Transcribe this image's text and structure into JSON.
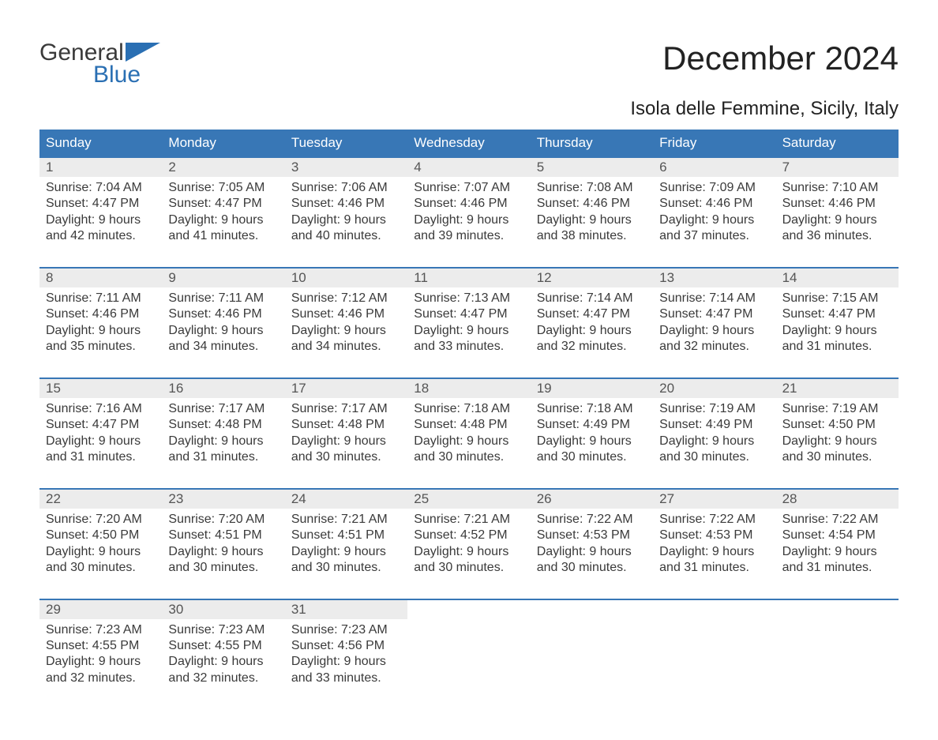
{
  "logo": {
    "line1": "General",
    "line2": "Blue",
    "brand_color": "#2a6fb3"
  },
  "title": "December 2024",
  "subtitle": "Isola delle Femmine, Sicily, Italy",
  "colors": {
    "header_bg": "#3877b6",
    "header_text": "#ffffff",
    "daynum_bg": "#ececec",
    "daynum_text": "#555555",
    "body_text": "#3a3a3a",
    "rule": "#3877b6",
    "page_bg": "#ffffff"
  },
  "weekdays": [
    "Sunday",
    "Monday",
    "Tuesday",
    "Wednesday",
    "Thursday",
    "Friday",
    "Saturday"
  ],
  "weeks": [
    [
      {
        "num": "1",
        "sunrise": "Sunrise: 7:04 AM",
        "sunset": "Sunset: 4:47 PM",
        "daylight": "Daylight: 9 hours and 42 minutes."
      },
      {
        "num": "2",
        "sunrise": "Sunrise: 7:05 AM",
        "sunset": "Sunset: 4:47 PM",
        "daylight": "Daylight: 9 hours and 41 minutes."
      },
      {
        "num": "3",
        "sunrise": "Sunrise: 7:06 AM",
        "sunset": "Sunset: 4:46 PM",
        "daylight": "Daylight: 9 hours and 40 minutes."
      },
      {
        "num": "4",
        "sunrise": "Sunrise: 7:07 AM",
        "sunset": "Sunset: 4:46 PM",
        "daylight": "Daylight: 9 hours and 39 minutes."
      },
      {
        "num": "5",
        "sunrise": "Sunrise: 7:08 AM",
        "sunset": "Sunset: 4:46 PM",
        "daylight": "Daylight: 9 hours and 38 minutes."
      },
      {
        "num": "6",
        "sunrise": "Sunrise: 7:09 AM",
        "sunset": "Sunset: 4:46 PM",
        "daylight": "Daylight: 9 hours and 37 minutes."
      },
      {
        "num": "7",
        "sunrise": "Sunrise: 7:10 AM",
        "sunset": "Sunset: 4:46 PM",
        "daylight": "Daylight: 9 hours and 36 minutes."
      }
    ],
    [
      {
        "num": "8",
        "sunrise": "Sunrise: 7:11 AM",
        "sunset": "Sunset: 4:46 PM",
        "daylight": "Daylight: 9 hours and 35 minutes."
      },
      {
        "num": "9",
        "sunrise": "Sunrise: 7:11 AM",
        "sunset": "Sunset: 4:46 PM",
        "daylight": "Daylight: 9 hours and 34 minutes."
      },
      {
        "num": "10",
        "sunrise": "Sunrise: 7:12 AM",
        "sunset": "Sunset: 4:46 PM",
        "daylight": "Daylight: 9 hours and 34 minutes."
      },
      {
        "num": "11",
        "sunrise": "Sunrise: 7:13 AM",
        "sunset": "Sunset: 4:47 PM",
        "daylight": "Daylight: 9 hours and 33 minutes."
      },
      {
        "num": "12",
        "sunrise": "Sunrise: 7:14 AM",
        "sunset": "Sunset: 4:47 PM",
        "daylight": "Daylight: 9 hours and 32 minutes."
      },
      {
        "num": "13",
        "sunrise": "Sunrise: 7:14 AM",
        "sunset": "Sunset: 4:47 PM",
        "daylight": "Daylight: 9 hours and 32 minutes."
      },
      {
        "num": "14",
        "sunrise": "Sunrise: 7:15 AM",
        "sunset": "Sunset: 4:47 PM",
        "daylight": "Daylight: 9 hours and 31 minutes."
      }
    ],
    [
      {
        "num": "15",
        "sunrise": "Sunrise: 7:16 AM",
        "sunset": "Sunset: 4:47 PM",
        "daylight": "Daylight: 9 hours and 31 minutes."
      },
      {
        "num": "16",
        "sunrise": "Sunrise: 7:17 AM",
        "sunset": "Sunset: 4:48 PM",
        "daylight": "Daylight: 9 hours and 31 minutes."
      },
      {
        "num": "17",
        "sunrise": "Sunrise: 7:17 AM",
        "sunset": "Sunset: 4:48 PM",
        "daylight": "Daylight: 9 hours and 30 minutes."
      },
      {
        "num": "18",
        "sunrise": "Sunrise: 7:18 AM",
        "sunset": "Sunset: 4:48 PM",
        "daylight": "Daylight: 9 hours and 30 minutes."
      },
      {
        "num": "19",
        "sunrise": "Sunrise: 7:18 AM",
        "sunset": "Sunset: 4:49 PM",
        "daylight": "Daylight: 9 hours and 30 minutes."
      },
      {
        "num": "20",
        "sunrise": "Sunrise: 7:19 AM",
        "sunset": "Sunset: 4:49 PM",
        "daylight": "Daylight: 9 hours and 30 minutes."
      },
      {
        "num": "21",
        "sunrise": "Sunrise: 7:19 AM",
        "sunset": "Sunset: 4:50 PM",
        "daylight": "Daylight: 9 hours and 30 minutes."
      }
    ],
    [
      {
        "num": "22",
        "sunrise": "Sunrise: 7:20 AM",
        "sunset": "Sunset: 4:50 PM",
        "daylight": "Daylight: 9 hours and 30 minutes."
      },
      {
        "num": "23",
        "sunrise": "Sunrise: 7:20 AM",
        "sunset": "Sunset: 4:51 PM",
        "daylight": "Daylight: 9 hours and 30 minutes."
      },
      {
        "num": "24",
        "sunrise": "Sunrise: 7:21 AM",
        "sunset": "Sunset: 4:51 PM",
        "daylight": "Daylight: 9 hours and 30 minutes."
      },
      {
        "num": "25",
        "sunrise": "Sunrise: 7:21 AM",
        "sunset": "Sunset: 4:52 PM",
        "daylight": "Daylight: 9 hours and 30 minutes."
      },
      {
        "num": "26",
        "sunrise": "Sunrise: 7:22 AM",
        "sunset": "Sunset: 4:53 PM",
        "daylight": "Daylight: 9 hours and 30 minutes."
      },
      {
        "num": "27",
        "sunrise": "Sunrise: 7:22 AM",
        "sunset": "Sunset: 4:53 PM",
        "daylight": "Daylight: 9 hours and 31 minutes."
      },
      {
        "num": "28",
        "sunrise": "Sunrise: 7:22 AM",
        "sunset": "Sunset: 4:54 PM",
        "daylight": "Daylight: 9 hours and 31 minutes."
      }
    ],
    [
      {
        "num": "29",
        "sunrise": "Sunrise: 7:23 AM",
        "sunset": "Sunset: 4:55 PM",
        "daylight": "Daylight: 9 hours and 32 minutes."
      },
      {
        "num": "30",
        "sunrise": "Sunrise: 7:23 AM",
        "sunset": "Sunset: 4:55 PM",
        "daylight": "Daylight: 9 hours and 32 minutes."
      },
      {
        "num": "31",
        "sunrise": "Sunrise: 7:23 AM",
        "sunset": "Sunset: 4:56 PM",
        "daylight": "Daylight: 9 hours and 33 minutes."
      },
      null,
      null,
      null,
      null
    ]
  ]
}
